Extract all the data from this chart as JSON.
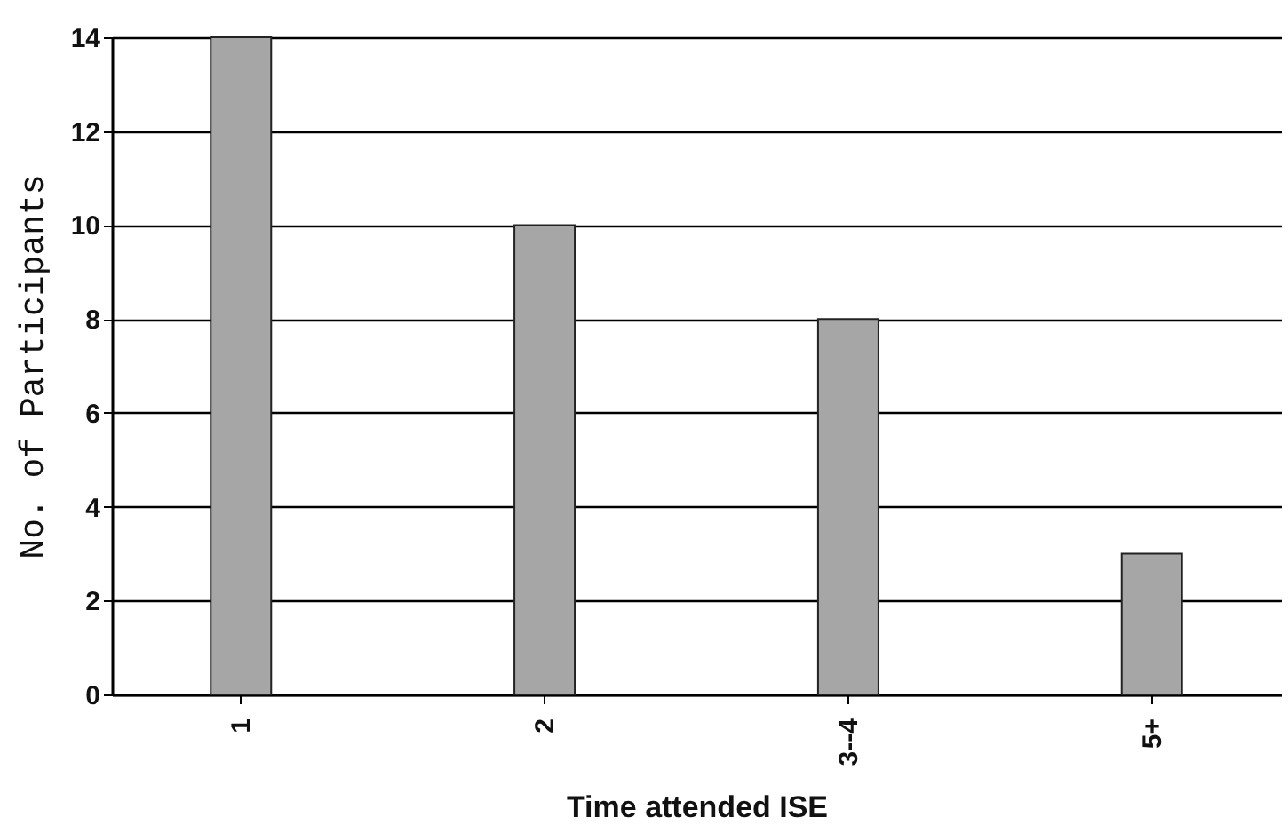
{
  "chart_data": {
    "type": "bar",
    "xlabel": "Time attended ISE",
    "ylabel": "No. of Participants",
    "categories": [
      "1",
      "2",
      "3--4",
      "5+"
    ],
    "values": [
      14,
      10,
      8,
      3
    ],
    "color": "#a6a6a6",
    "ylim": [
      0,
      14
    ],
    "yticks": [
      0,
      2,
      4,
      6,
      8,
      10,
      12,
      14
    ],
    "grid": "y"
  }
}
